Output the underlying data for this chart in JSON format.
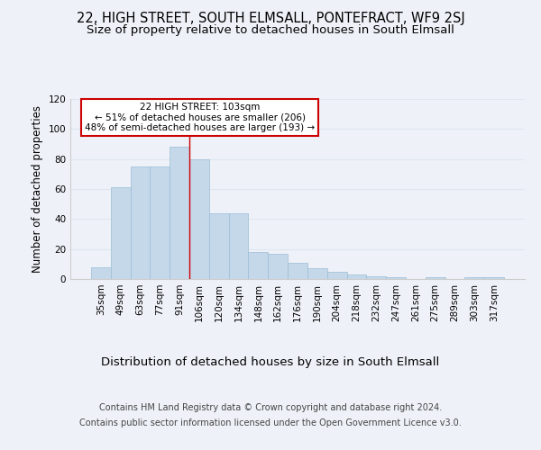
{
  "title1": "22, HIGH STREET, SOUTH ELMSALL, PONTEFRACT, WF9 2SJ",
  "title2": "Size of property relative to detached houses in South Elmsall",
  "xlabel": "Distribution of detached houses by size in South Elmsall",
  "ylabel": "Number of detached properties",
  "categories": [
    "35sqm",
    "49sqm",
    "63sqm",
    "77sqm",
    "91sqm",
    "106sqm",
    "120sqm",
    "134sqm",
    "148sqm",
    "162sqm",
    "176sqm",
    "190sqm",
    "204sqm",
    "218sqm",
    "232sqm",
    "247sqm",
    "261sqm",
    "275sqm",
    "289sqm",
    "303sqm",
    "317sqm"
  ],
  "values": [
    8,
    61,
    75,
    75,
    88,
    80,
    44,
    44,
    18,
    17,
    11,
    7,
    5,
    3,
    2,
    1,
    0,
    1,
    0,
    1,
    1
  ],
  "bar_color": "#c5d8ea",
  "bar_edge_color": "#9bbdd4",
  "grid_color": "#dde6f0",
  "background_color": "#eef2f8",
  "vline_color": "#cc0000",
  "vline_x_index": 5,
  "annotation_text": "22 HIGH STREET: 103sqm\n← 51% of detached houses are smaller (206)\n48% of semi-detached houses are larger (193) →",
  "annotation_box_color": "#ffffff",
  "annotation_box_edge": "#cc0000",
  "footer1": "Contains HM Land Registry data © Crown copyright and database right 2024.",
  "footer2": "Contains public sector information licensed under the Open Government Licence v3.0.",
  "ylim": [
    0,
    120
  ],
  "yticks": [
    0,
    20,
    40,
    60,
    80,
    100,
    120
  ],
  "title1_fontsize": 10.5,
  "title2_fontsize": 9.5,
  "xlabel_fontsize": 9.5,
  "ylabel_fontsize": 8.5,
  "tick_fontsize": 7.5,
  "annotation_fontsize": 7.5,
  "footer_fontsize": 7
}
